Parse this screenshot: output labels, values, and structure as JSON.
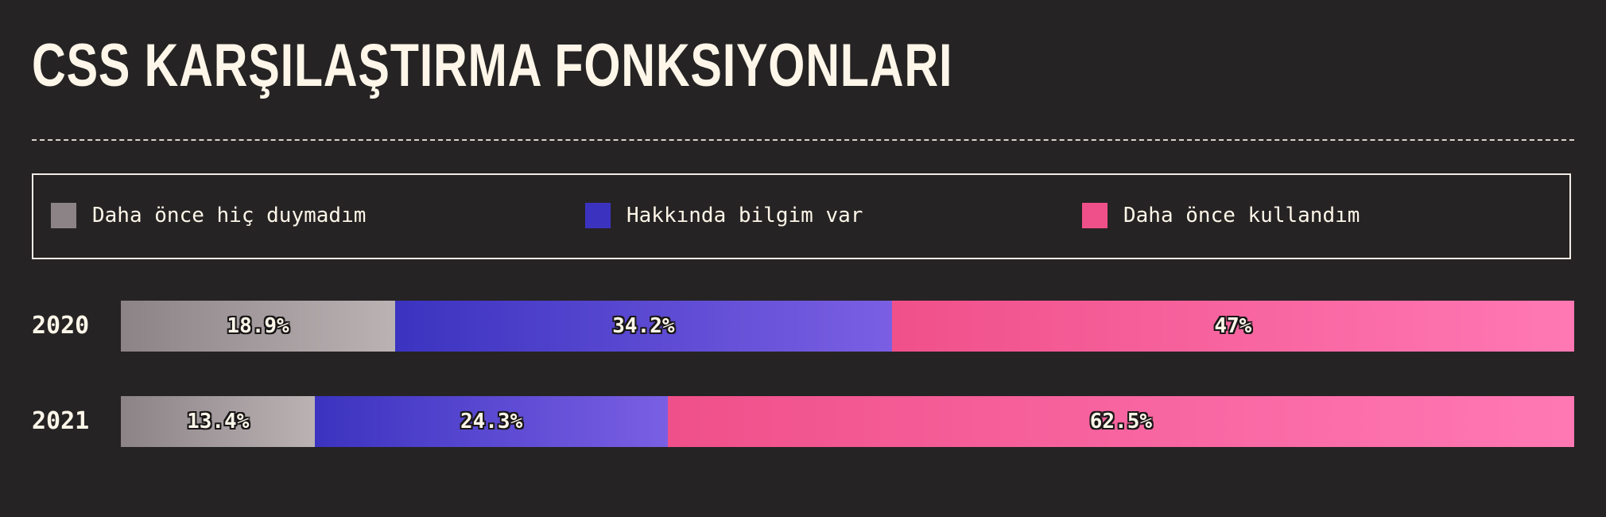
{
  "title": "CSS KARŞILAŞTIRMA FONKSIYONLARI",
  "legend": [
    {
      "label": "Daha önce hiç duymadım",
      "color": "#8b8386"
    },
    {
      "label": "Hakkında bilgim var",
      "color": "#3b33c0"
    },
    {
      "label": "Daha önce kullandım",
      "color": "#f0508a"
    }
  ],
  "chart_data": {
    "type": "bar",
    "stacked": true,
    "orientation": "horizontal",
    "categories": [
      "2020",
      "2021"
    ],
    "series": [
      {
        "name": "Daha önce hiç duymadım",
        "values": [
          18.9,
          13.4
        ],
        "labels": [
          "18.9%",
          "13.4%"
        ],
        "color_start": "#8b8386",
        "color_end": "#bab2b3"
      },
      {
        "name": "Hakkında bilgim var",
        "values": [
          34.2,
          24.3
        ],
        "labels": [
          "34.2%",
          "24.3%"
        ],
        "color_start": "#3b33c0",
        "color_end": "#7a5fe3"
      },
      {
        "name": "Daha önce kullandım",
        "values": [
          47,
          62.5
        ],
        "labels": [
          "47%",
          "62.5%"
        ],
        "color_start": "#f0508a",
        "color_end": "#ff78b4"
      }
    ]
  }
}
